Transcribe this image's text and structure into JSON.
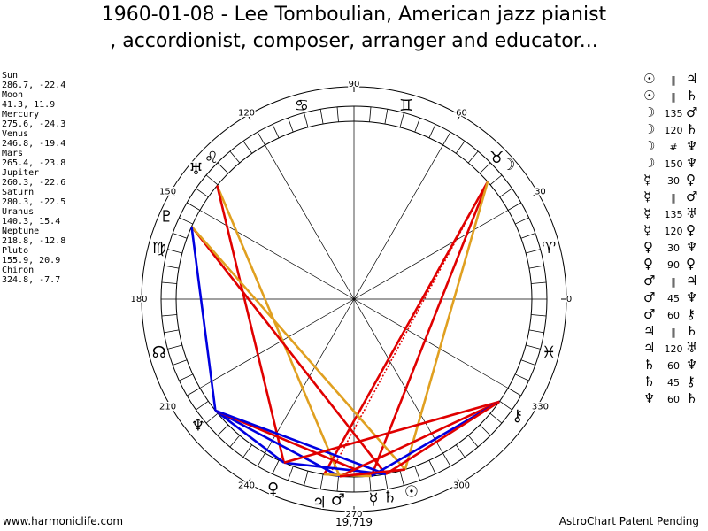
{
  "title_line1": "1960-01-08 - Lee Tomboulian, American jazz pianist",
  "title_line2": ", accordionist, composer, arranger and educator...",
  "footer_left": "www.harmoniclife.com",
  "footer_right": "AstroChart Patent Pending",
  "harmonic_label": "19,719",
  "degree_labels": [
    "0",
    "30",
    "60",
    "90",
    "120",
    "150",
    "180",
    "210",
    "240",
    "270",
    "300",
    "330"
  ],
  "planets": [
    {
      "name": "Sun",
      "pos": "286.7, -22.4",
      "lon": 286.7,
      "glyph": "☉"
    },
    {
      "name": "Moon",
      "pos": "41.3, 11.9",
      "lon": 41.3,
      "glyph": "☽"
    },
    {
      "name": "Mercury",
      "pos": "275.6, -24.3",
      "lon": 275.6,
      "glyph": "☿"
    },
    {
      "name": "Venus",
      "pos": "246.8, -19.4",
      "lon": 246.8,
      "glyph": "♀"
    },
    {
      "name": "Mars",
      "pos": "265.4, -23.8",
      "lon": 265.4,
      "glyph": "♂"
    },
    {
      "name": "Jupiter",
      "pos": "260.3, -22.6",
      "lon": 260.3,
      "glyph": "♃"
    },
    {
      "name": "Saturn",
      "pos": "280.3, -22.5",
      "lon": 280.3,
      "glyph": "♄"
    },
    {
      "name": "Uranus",
      "pos": "140.3, 15.4",
      "lon": 140.3,
      "glyph": "♅"
    },
    {
      "name": "Neptune",
      "pos": "218.8, -12.8",
      "lon": 218.8,
      "glyph": "♆"
    },
    {
      "name": "Pluto",
      "pos": "155.9, 20.9",
      "lon": 155.9,
      "glyph": "♇"
    },
    {
      "name": "Chiron",
      "pos": "324.8, -7.7",
      "lon": 324.8,
      "glyph": "⚷"
    }
  ],
  "signs": [
    {
      "glyph": "♈",
      "mid": 15
    },
    {
      "glyph": "♓",
      "mid": 345
    },
    {
      "glyph": "♉",
      "mid": 45
    },
    {
      "glyph": "♊",
      "mid": 75
    },
    {
      "glyph": "♋",
      "mid": 105
    },
    {
      "glyph": "♌",
      "mid": 135
    },
    {
      "glyph": "♍",
      "mid": 165
    },
    {
      "glyph": "☊",
      "mid": 195
    }
  ],
  "aspects": [
    {
      "p1": "☉",
      "type": "‖",
      "p2": "♃"
    },
    {
      "p1": "☉",
      "type": "‖",
      "p2": "♄"
    },
    {
      "p1": "☽",
      "type": "135",
      "p2": "♂"
    },
    {
      "p1": "☽",
      "type": "120",
      "p2": "♄"
    },
    {
      "p1": "☽",
      "type": "#",
      "p2": "♆"
    },
    {
      "p1": "☽",
      "type": "150",
      "p2": "♆"
    },
    {
      "p1": "☿",
      "type": "30",
      "p2": "♀"
    },
    {
      "p1": "☿",
      "type": "‖",
      "p2": "♂"
    },
    {
      "p1": "☿",
      "type": "135",
      "p2": "♅"
    },
    {
      "p1": "☿",
      "type": "120",
      "p2": "♀"
    },
    {
      "p1": "♀",
      "type": "30",
      "p2": "♆"
    },
    {
      "p1": "♀",
      "type": "90",
      "p2": "♀"
    },
    {
      "p1": "♂",
      "type": "‖",
      "p2": "♃"
    },
    {
      "p1": "♂",
      "type": "45",
      "p2": "♆"
    },
    {
      "p1": "♂",
      "type": "60",
      "p2": "⚷"
    },
    {
      "p1": "♃",
      "type": "‖",
      "p2": "♄"
    },
    {
      "p1": "♃",
      "type": "120",
      "p2": "♅"
    },
    {
      "p1": "♄",
      "type": "60",
      "p2": "♆"
    },
    {
      "p1": "♄",
      "type": "45",
      "p2": "⚷"
    },
    {
      "p1": "♆",
      "type": "60",
      "p2": "♄"
    }
  ],
  "aspect_lines": [
    {
      "a": 41.3,
      "b": 260.3,
      "color": "#e00000"
    },
    {
      "a": 41.3,
      "b": 262.0,
      "color": "#e00000",
      "dashed": true
    },
    {
      "a": 41.3,
      "b": 275.6,
      "color": "#e00000"
    },
    {
      "a": 41.3,
      "b": 286.7,
      "color": "#e0a020"
    },
    {
      "a": 140.3,
      "b": 265.4,
      "color": "#e0a020"
    },
    {
      "a": 140.3,
      "b": 246.8,
      "color": "#e00000"
    },
    {
      "a": 155.9,
      "b": 280.3,
      "color": "#e00000"
    },
    {
      "a": 155.9,
      "b": 286.7,
      "color": "#e0a020"
    },
    {
      "a": 155.9,
      "b": 218.8,
      "color": "#0000e0"
    },
    {
      "a": 218.8,
      "b": 246.8,
      "color": "#0000e0"
    },
    {
      "a": 218.8,
      "b": 265.4,
      "color": "#0000e0"
    },
    {
      "a": 218.8,
      "b": 275.6,
      "color": "#e00000"
    },
    {
      "a": 218.8,
      "b": 280.3,
      "color": "#0000e0"
    },
    {
      "a": 246.8,
      "b": 280.3,
      "color": "#0000e0"
    },
    {
      "a": 246.8,
      "b": 324.8,
      "color": "#e00000"
    },
    {
      "a": 265.4,
      "b": 324.8,
      "color": "#e00000"
    },
    {
      "a": 275.6,
      "b": 324.8,
      "color": "#0000e0"
    },
    {
      "a": 280.3,
      "b": 324.8,
      "color": "#e00000"
    },
    {
      "a": 260.3,
      "b": 275.6,
      "color": "#e0a020"
    },
    {
      "a": 265.4,
      "b": 286.7,
      "color": "#e00000"
    }
  ]
}
